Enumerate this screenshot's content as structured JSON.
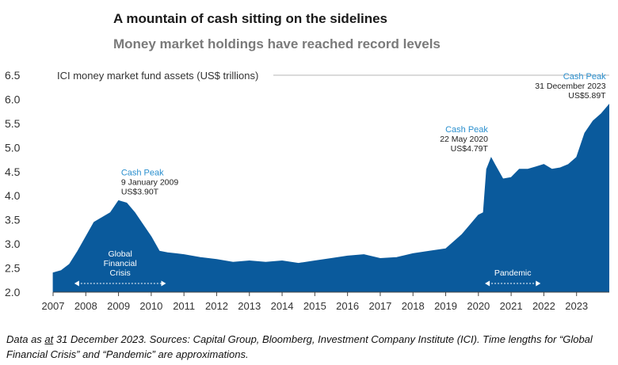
{
  "title": "A mountain of cash sitting on the sidelines",
  "subtitle": "Money market holdings have reached record levels",
  "footnote": {
    "prefix": "Data as ",
    "underlined": "at",
    "rest": " 31 December 2023. Sources: Capital Group, Bloomberg, Investment Company Institute (ICI). Time lengths for “Global Financial Crisis” and “Pandemic” are approximations."
  },
  "chart_data": {
    "type": "area",
    "ylabel": "ICI money market fund assets (US$ trillions)",
    "ylim": [
      2.0,
      6.5
    ],
    "yticks": [
      "2.0",
      "2.5",
      "3.0",
      "3.5",
      "4.0",
      "4.5",
      "5.0",
      "5.5",
      "6.0",
      "6.5"
    ],
    "xlim": [
      2007.0,
      2024.0
    ],
    "xticks": [
      "2007",
      "2008",
      "2009",
      "2010",
      "2011",
      "2012",
      "2013",
      "2014",
      "2015",
      "2016",
      "2017",
      "2018",
      "2019",
      "2020",
      "2021",
      "2022",
      "2023"
    ],
    "grid": false,
    "color": "#0a5a9c",
    "x": [
      2007.0,
      2007.25,
      2007.5,
      2007.75,
      2008.0,
      2008.25,
      2008.5,
      2008.75,
      2009.0,
      2009.25,
      2009.5,
      2009.75,
      2010.0,
      2010.25,
      2010.5,
      2010.75,
      2011.0,
      2011.5,
      2012.0,
      2012.5,
      2013.0,
      2013.5,
      2014.0,
      2014.5,
      2015.0,
      2015.5,
      2016.0,
      2016.5,
      2017.0,
      2017.5,
      2018.0,
      2018.5,
      2019.0,
      2019.25,
      2019.5,
      2019.75,
      2020.0,
      2020.15,
      2020.25,
      2020.39,
      2020.5,
      2020.75,
      2021.0,
      2021.25,
      2021.5,
      2021.75,
      2022.0,
      2022.25,
      2022.5,
      2022.75,
      2023.0,
      2023.25,
      2023.5,
      2023.75,
      2023.99
    ],
    "values": [
      2.4,
      2.45,
      2.58,
      2.85,
      3.15,
      3.45,
      3.55,
      3.65,
      3.9,
      3.85,
      3.65,
      3.4,
      3.15,
      2.85,
      2.82,
      2.8,
      2.78,
      2.72,
      2.68,
      2.62,
      2.65,
      2.62,
      2.65,
      2.6,
      2.65,
      2.7,
      2.75,
      2.78,
      2.7,
      2.72,
      2.8,
      2.85,
      2.9,
      3.05,
      3.2,
      3.4,
      3.6,
      3.65,
      4.55,
      4.79,
      4.65,
      4.35,
      4.38,
      4.55,
      4.55,
      4.6,
      4.65,
      4.55,
      4.58,
      4.65,
      4.8,
      5.3,
      5.55,
      5.7,
      5.89
    ],
    "annotations": [
      {
        "title": "Cash Peak",
        "date": "9 January 2009",
        "value": "US$3.90T",
        "x": 2009.03,
        "y": 3.9,
        "align": "left"
      },
      {
        "title": "Cash Peak",
        "date": "22 May 2020",
        "value": "US$4.79T",
        "x": 2020.39,
        "y": 4.79,
        "align": "right"
      },
      {
        "title": "Cash Peak",
        "date": "31 December 2023",
        "value": "US$5.89T",
        "x": 2023.99,
        "y": 5.89,
        "align": "right"
      }
    ],
    "periods": [
      {
        "label": "Global Financial Crisis",
        "lines": [
          "Global",
          "Financial",
          "Crisis"
        ],
        "start": 2007.65,
        "end": 2010.45
      },
      {
        "label": "Pandemic",
        "lines": [
          "Pandemic"
        ],
        "start": 2020.2,
        "end": 2021.9
      }
    ]
  }
}
